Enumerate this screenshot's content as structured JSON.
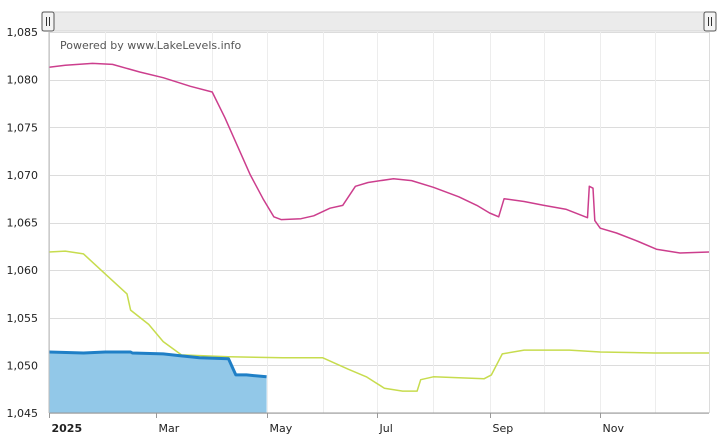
{
  "chart_data": {
    "type": "line",
    "title": "",
    "xlabel": "",
    "ylabel": "",
    "credit": "Powered by www.LakeLevels.info",
    "x_axis_type": "date",
    "xlim": [
      "2025-01-01",
      "2025-12-31"
    ],
    "ylim": [
      1045,
      1085
    ],
    "y_ticks": [
      {
        "value": 1045,
        "label": "1,045"
      },
      {
        "value": 1050,
        "label": "1,050"
      },
      {
        "value": 1055,
        "label": "1,055"
      },
      {
        "value": 1060,
        "label": "1,060"
      },
      {
        "value": 1065,
        "label": "1,065"
      },
      {
        "value": 1070,
        "label": "1,070"
      },
      {
        "value": 1075,
        "label": "1,075"
      },
      {
        "value": 1080,
        "label": "1,080"
      },
      {
        "value": 1085,
        "label": "1,085"
      }
    ],
    "x_ticks": [
      {
        "date": "2025-01-01",
        "label": "2025",
        "bold": true
      },
      {
        "date": "2025-03-01",
        "label": "Mar",
        "bold": false
      },
      {
        "date": "2025-05-01",
        "label": "May",
        "bold": false
      },
      {
        "date": "2025-07-01",
        "label": "Jul",
        "bold": false
      },
      {
        "date": "2025-09-01",
        "label": "Sep",
        "bold": false
      },
      {
        "date": "2025-11-01",
        "label": "Nov",
        "bold": false
      }
    ],
    "grid": true,
    "series": [
      {
        "color": "#cc3e8d",
        "style": "line",
        "points": [
          [
            "2025-01-01",
            1081.3
          ],
          [
            "2025-01-10",
            1081.5
          ],
          [
            "2025-01-25",
            1081.7
          ],
          [
            "2025-02-05",
            1081.6
          ],
          [
            "2025-02-20",
            1080.8
          ],
          [
            "2025-03-05",
            1080.2
          ],
          [
            "2025-03-20",
            1079.3
          ],
          [
            "2025-04-01",
            1078.7
          ],
          [
            "2025-04-08",
            1076.0
          ],
          [
            "2025-04-15",
            1073.0
          ],
          [
            "2025-04-22",
            1070.0
          ],
          [
            "2025-04-29",
            1067.5
          ],
          [
            "2025-05-05",
            1065.6
          ],
          [
            "2025-05-09",
            1065.3
          ],
          [
            "2025-05-20",
            1065.4
          ],
          [
            "2025-05-27",
            1065.7
          ],
          [
            "2025-06-05",
            1066.5
          ],
          [
            "2025-06-12",
            1066.8
          ],
          [
            "2025-06-19",
            1068.8
          ],
          [
            "2025-06-26",
            1069.2
          ],
          [
            "2025-07-10",
            1069.6
          ],
          [
            "2025-07-20",
            1069.4
          ],
          [
            "2025-08-01",
            1068.7
          ],
          [
            "2025-08-15",
            1067.7
          ],
          [
            "2025-08-25",
            1066.8
          ],
          [
            "2025-09-01",
            1066.0
          ],
          [
            "2025-09-06",
            1065.6
          ],
          [
            "2025-09-09",
            1067.5
          ],
          [
            "2025-09-20",
            1067.2
          ],
          [
            "2025-10-01",
            1066.8
          ],
          [
            "2025-10-13",
            1066.4
          ],
          [
            "2025-10-25",
            1065.5
          ],
          [
            "2025-10-26",
            1068.8
          ],
          [
            "2025-10-28",
            1068.6
          ],
          [
            "2025-10-29",
            1065.2
          ],
          [
            "2025-11-01",
            1064.4
          ],
          [
            "2025-11-10",
            1063.9
          ],
          [
            "2025-11-22",
            1063.0
          ],
          [
            "2025-12-02",
            1062.2
          ],
          [
            "2025-12-15",
            1061.8
          ],
          [
            "2025-12-31",
            1061.9
          ]
        ]
      },
      {
        "color": "#c7dc4e",
        "style": "line",
        "points": [
          [
            "2025-01-01",
            1061.9
          ],
          [
            "2025-01-10",
            1062.0
          ],
          [
            "2025-01-20",
            1061.7
          ],
          [
            "2025-02-01",
            1059.6
          ],
          [
            "2025-02-13",
            1057.5
          ],
          [
            "2025-02-15",
            1055.8
          ],
          [
            "2025-02-25",
            1054.3
          ],
          [
            "2025-03-05",
            1052.5
          ],
          [
            "2025-03-15",
            1051.1
          ],
          [
            "2025-04-10",
            1050.9
          ],
          [
            "2025-05-10",
            1050.8
          ],
          [
            "2025-06-01",
            1050.8
          ],
          [
            "2025-06-15",
            1049.6
          ],
          [
            "2025-06-25",
            1048.8
          ],
          [
            "2025-07-05",
            1047.6
          ],
          [
            "2025-07-15",
            1047.3
          ],
          [
            "2025-07-23",
            1047.3
          ],
          [
            "2025-07-25",
            1048.5
          ],
          [
            "2025-08-01",
            1048.8
          ],
          [
            "2025-08-29",
            1048.6
          ],
          [
            "2025-09-02",
            1049.0
          ],
          [
            "2025-09-08",
            1051.2
          ],
          [
            "2025-09-20",
            1051.6
          ],
          [
            "2025-10-15",
            1051.6
          ],
          [
            "2025-11-01",
            1051.4
          ],
          [
            "2025-12-01",
            1051.3
          ],
          [
            "2025-12-31",
            1051.3
          ]
        ]
      },
      {
        "color": "#1f7fc6",
        "fill": "#92c8e8",
        "style": "area",
        "points": [
          [
            "2025-01-01",
            1051.4
          ],
          [
            "2025-01-20",
            1051.3
          ],
          [
            "2025-02-01",
            1051.4
          ],
          [
            "2025-02-15",
            1051.4
          ],
          [
            "2025-02-16",
            1051.3
          ],
          [
            "2025-03-05",
            1051.2
          ],
          [
            "2025-03-15",
            1051.0
          ],
          [
            "2025-03-25",
            1050.8
          ],
          [
            "2025-04-10",
            1050.7
          ],
          [
            "2025-04-14",
            1049.0
          ],
          [
            "2025-04-20",
            1049.0
          ],
          [
            "2025-05-01",
            1048.8
          ]
        ]
      }
    ]
  },
  "navigator": {
    "left_handle_icon": "grip-handle-icon",
    "right_handle_icon": "grip-handle-icon"
  }
}
